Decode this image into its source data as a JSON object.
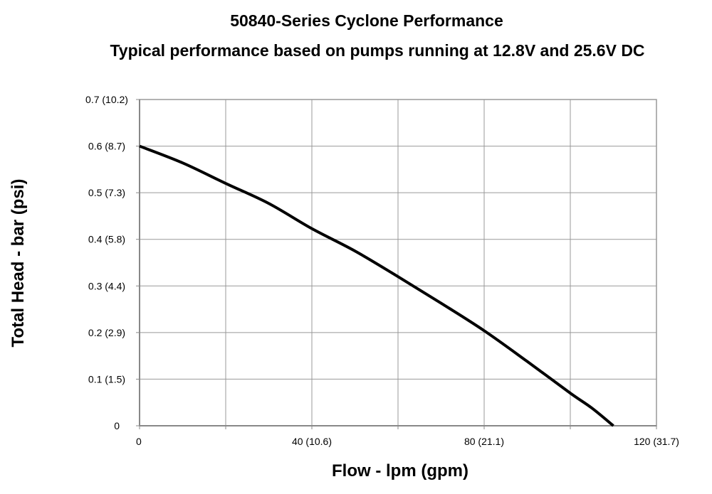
{
  "chart_data": {
    "type": "line",
    "title": "50840-Series Cyclone Performance",
    "subtitle": "Typical performance based on pumps running at 12.8V and 25.6V DC",
    "xlabel": "Flow - lpm (gpm)",
    "ylabel": "Total Head - bar (psi)",
    "xlim": [
      0,
      120
    ],
    "ylim": [
      0,
      0.7
    ],
    "grid": true,
    "x_ticks": [
      {
        "value": 0,
        "label": "0"
      },
      {
        "value": 40,
        "label": "40 (10.6)"
      },
      {
        "value": 80,
        "label": "80 (21.1)"
      },
      {
        "value": 120,
        "label": "120 (31.7)"
      }
    ],
    "y_ticks": [
      {
        "value": 0,
        "label": "0"
      },
      {
        "value": 0.1,
        "label": "0.1 (1.5)"
      },
      {
        "value": 0.2,
        "label": "0.2 (2.9)"
      },
      {
        "value": 0.3,
        "label": "0.3 (4.4)"
      },
      {
        "value": 0.4,
        "label": "0.4 (5.8)"
      },
      {
        "value": 0.5,
        "label": "0.5 (7.3)"
      },
      {
        "value": 0.6,
        "label": "0.6 (8.7)"
      },
      {
        "value": 0.7,
        "label": "0.7 (10.2)"
      }
    ],
    "series": [
      {
        "color": "#000000",
        "x": [
          0,
          10,
          20,
          30,
          40,
          50,
          60,
          70,
          80,
          90,
          100,
          105,
          110
        ],
        "y": [
          0.6,
          0.564,
          0.52,
          0.477,
          0.423,
          0.375,
          0.32,
          0.263,
          0.204,
          0.138,
          0.07,
          0.038,
          0
        ]
      }
    ]
  }
}
